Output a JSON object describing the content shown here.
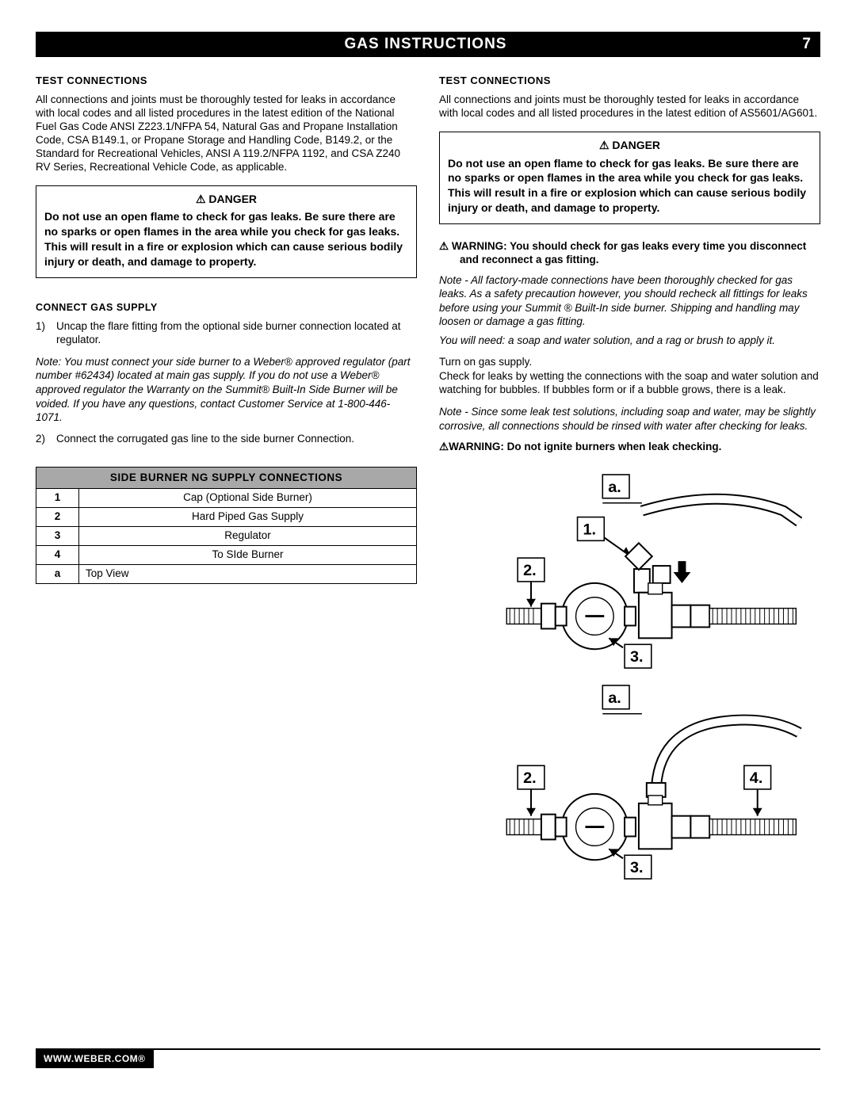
{
  "header": {
    "title": "GAS INSTRUCTIONS",
    "page": "7"
  },
  "left": {
    "test_head": "Test Connections",
    "test_body": "All connections and joints must be thoroughly tested for leaks in accordance with local codes and all listed procedures in the latest edition of the National Fuel Gas Code ANSI Z223.1/NFPA 54, Natural Gas and Propane Installation Code, CSA B149.1, or Propane Storage and Handling Code, B149.2, or the Standard for Recreational Vehicles, ANSI A 119.2/NFPA 1192, and CSA Z240 RV Series, Recreational Vehicle Code, as applicable.",
    "danger_head": "⚠ DANGER",
    "danger_body": "Do not use an open flame to check for gas leaks. Be sure there are no sparks or open flames in the area while you check for gas leaks. This will result in a fire or explosion which can cause serious bodily injury or death, and damage to property.",
    "connect_head": "Connect Gas Supply",
    "step1_num": "1)",
    "step1": "Uncap the flare fitting from the optional side burner connection located at regulator.",
    "note1": "Note:  You must connect your side burner to a Weber® approved regulator (part number #62434) located  at main gas supply. If you do not use a Weber® approved regulator the Warranty on the Summit® Built-In Side Burner will be voided. If you have any questions, contact Customer Service at 1-800-446-1071.",
    "step2_num": "2)",
    "step2": "Connect the corrugated gas line to the side burner Connection."
  },
  "right": {
    "test_head": "Test Connections",
    "test_body": "All connections and joints must be thoroughly tested for leaks in accordance with local codes and all listed procedures in the latest edition of AS5601/AG601.",
    "danger_head": "⚠ DANGER",
    "danger_body": "Do not use an open flame to check for gas leaks. Be sure there are no sparks or open flames in the area while you check for gas leaks. This will result in a fire or explosion which can cause serious bodily injury or death, and damage to property.",
    "warn1": "⚠ WARNING: You should check for gas leaks every time you disconnect and reconnect a gas fitting.",
    "note2": "Note - All factory-made connections have been thoroughly checked for gas leaks. As a safety precaution however, you should recheck all fittings for leaks before using your Summit ® Built-In side burner. Shipping and handling may loosen or damage a gas fitting.",
    "need": "You will need: a soap and water solution, and a rag or brush to apply it.",
    "turn_on": "Turn on gas supply.",
    "check_leaks": "Check for leaks by wetting the connections with the soap and water solution and watching for bubbles. If bubbles form or if a bubble grows, there is a leak.",
    "note3": "Note - Since some leak test solutions, including soap and water, may be slightly corrosive, all connections should be rinsed with water after checking for leaks.",
    "warn2": "⚠WARNING: Do not ignite burners when leak checking."
  },
  "table": {
    "title": "SIDE BURNER NG SUPPLY CONNECTIONS",
    "rows": [
      {
        "k": "1",
        "v": "Cap (Optional Side Burner)",
        "align": "center"
      },
      {
        "k": "2",
        "v": "Hard Piped Gas Supply",
        "align": "center"
      },
      {
        "k": "3",
        "v": "Regulator",
        "align": "center"
      },
      {
        "k": "4",
        "v": "To SIde Burner",
        "align": "center"
      },
      {
        "k": "a",
        "v": "Top View",
        "align": "left"
      }
    ]
  },
  "diagram1": {
    "labels": {
      "a": "a.",
      "l1": "1.",
      "l2": "2.",
      "l3": "3."
    }
  },
  "diagram2": {
    "labels": {
      "a": "a.",
      "l2": "2.",
      "l3": "3.",
      "l4": "4."
    }
  },
  "footer": {
    "url": "WWW.WEBER.COM®"
  }
}
